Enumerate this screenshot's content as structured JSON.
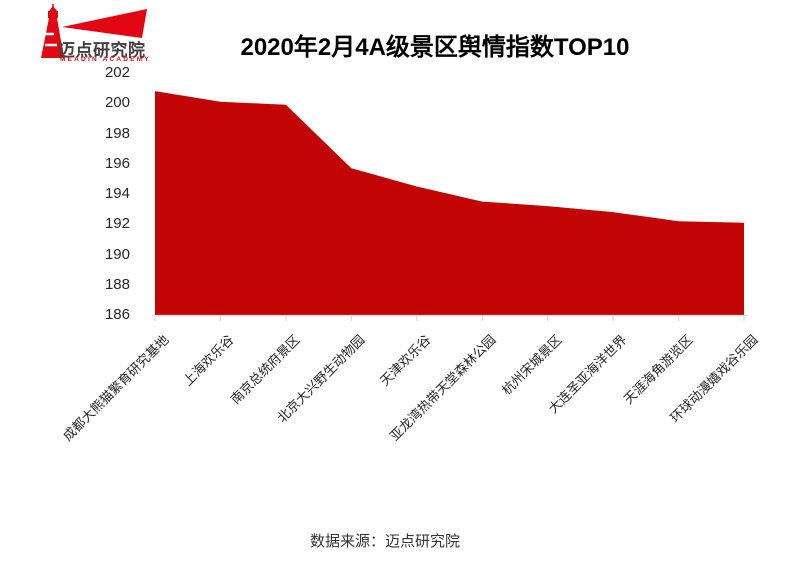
{
  "logo": {
    "name": "迈点研究院",
    "subtext": "MEADIN ACADEMY",
    "brand_red": "#E30613",
    "text_color": "#404040"
  },
  "header": {
    "title": "2020年2月4A级景区舆情指数TOP10"
  },
  "footer": {
    "source_text": "数据来源：迈点研究院"
  },
  "chart_data": {
    "type": "area",
    "title": "2020年2月4A级景区舆情指数TOP10",
    "categories": [
      "成都大熊猫繁育研究基地",
      "上海欢乐谷",
      "南京总统府景区",
      "北京大兴野生动物园",
      "天津欢乐谷",
      "亚龙湾热带天堂森林公园",
      "杭州宋城景区",
      "大连圣亚海洋世界",
      "天涯海角游览区",
      "环球动漫嬉戏谷乐园"
    ],
    "values": [
      200.8,
      200.1,
      199.9,
      195.7,
      194.5,
      193.5,
      193.2,
      192.8,
      192.2,
      192.1
    ],
    "xlabel": "",
    "ylabel": "",
    "ylim": [
      186,
      202
    ],
    "yticks": [
      202,
      200,
      198,
      196,
      194,
      192,
      190,
      188,
      186
    ],
    "grid": false,
    "legend": "none",
    "xtick_rotation_deg": 45,
    "area_color": "#C30505",
    "axis_color": "#D9D9D9",
    "tick_label_color": "#262626"
  }
}
